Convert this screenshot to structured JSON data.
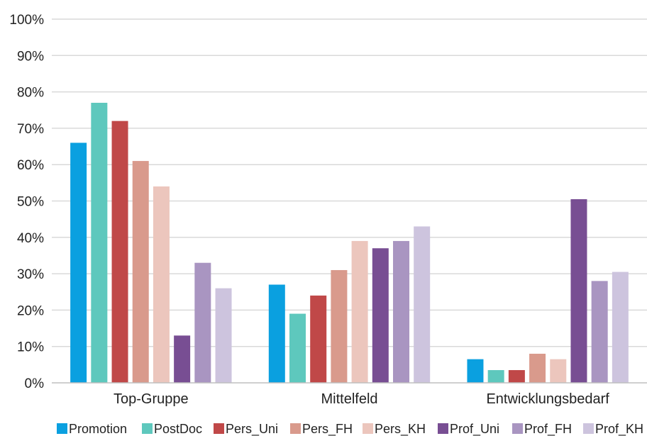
{
  "chart_data": {
    "type": "bar",
    "categories": [
      "Top-Gruppe",
      "Mittelfeld",
      "Entwicklungsbedarf"
    ],
    "ylim": [
      0,
      100
    ],
    "yticks": [
      "0%",
      "10%",
      "20%",
      "30%",
      "40%",
      "50%",
      "60%",
      "70%",
      "80%",
      "90%",
      "100%"
    ],
    "grid": true,
    "legend_position": "bottom",
    "series": [
      {
        "name": "Promotion",
        "color": "#0aa0e0",
        "values": [
          66,
          27,
          6.5
        ]
      },
      {
        "name": "PostDoc",
        "color": "#5ec8bd",
        "values": [
          77,
          19,
          3.5
        ]
      },
      {
        "name": "Pers_Uni",
        "color": "#c04848",
        "values": [
          72,
          24,
          3.5
        ]
      },
      {
        "name": "Pers_FH",
        "color": "#d99a8c",
        "values": [
          61,
          31,
          8
        ]
      },
      {
        "name": "Pers_KH",
        "color": "#ecc6bd",
        "values": [
          54,
          39,
          6.5
        ]
      },
      {
        "name": "Prof_Uni",
        "color": "#784e93",
        "values": [
          13,
          37,
          50.5
        ]
      },
      {
        "name": "Prof_FH",
        "color": "#a995c1",
        "values": [
          33,
          39,
          28
        ]
      },
      {
        "name": "Prof_KH",
        "color": "#cdc4de",
        "values": [
          26,
          43,
          30.5
        ]
      }
    ]
  }
}
